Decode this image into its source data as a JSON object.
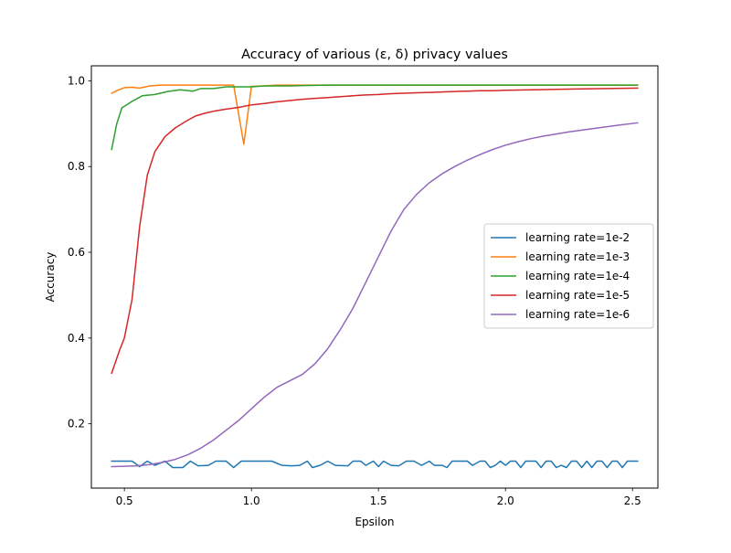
{
  "chart_data": {
    "type": "line",
    "title": "Accuracy of various (ε, δ) privacy values",
    "xlabel": "Epsilon",
    "ylabel": "Accuracy",
    "xlim": [
      0.37,
      2.6
    ],
    "ylim": [
      0.05,
      1.035
    ],
    "xticks": [
      0.5,
      1.0,
      1.5,
      2.0,
      2.5
    ],
    "xtick_labels": [
      "0.5",
      "1.0",
      "1.5",
      "2.0",
      "2.5"
    ],
    "yticks": [
      0.2,
      0.4,
      0.6,
      0.8,
      1.0
    ],
    "ytick_labels": [
      "0.2",
      "0.4",
      "0.6",
      "0.8",
      "1.0"
    ],
    "grid": false,
    "legend_position": "center-right",
    "series": [
      {
        "name": "learning rate=1e-2",
        "color": "#1f77b4",
        "points": [
          [
            0.45,
            0.113
          ],
          [
            0.5,
            0.113
          ],
          [
            0.53,
            0.113
          ],
          [
            0.56,
            0.1
          ],
          [
            0.59,
            0.113
          ],
          [
            0.62,
            0.103
          ],
          [
            0.66,
            0.113
          ],
          [
            0.69,
            0.098
          ],
          [
            0.73,
            0.098
          ],
          [
            0.76,
            0.113
          ],
          [
            0.79,
            0.102
          ],
          [
            0.83,
            0.103
          ],
          [
            0.86,
            0.113
          ],
          [
            0.9,
            0.113
          ],
          [
            0.93,
            0.098
          ],
          [
            0.96,
            0.113
          ],
          [
            1.0,
            0.113
          ],
          [
            1.05,
            0.113
          ],
          [
            1.08,
            0.113
          ],
          [
            1.12,
            0.103
          ],
          [
            1.16,
            0.102
          ],
          [
            1.19,
            0.103
          ],
          [
            1.22,
            0.113
          ],
          [
            1.24,
            0.098
          ],
          [
            1.27,
            0.103
          ],
          [
            1.3,
            0.113
          ],
          [
            1.33,
            0.103
          ],
          [
            1.38,
            0.102
          ],
          [
            1.4,
            0.113
          ],
          [
            1.43,
            0.113
          ],
          [
            1.45,
            0.103
          ],
          [
            1.48,
            0.113
          ],
          [
            1.5,
            0.1
          ],
          [
            1.52,
            0.113
          ],
          [
            1.55,
            0.103
          ],
          [
            1.58,
            0.102
          ],
          [
            1.61,
            0.113
          ],
          [
            1.64,
            0.113
          ],
          [
            1.67,
            0.103
          ],
          [
            1.7,
            0.113
          ],
          [
            1.72,
            0.103
          ],
          [
            1.75,
            0.103
          ],
          [
            1.77,
            0.098
          ],
          [
            1.79,
            0.113
          ],
          [
            1.82,
            0.113
          ],
          [
            1.85,
            0.113
          ],
          [
            1.87,
            0.103
          ],
          [
            1.9,
            0.113
          ],
          [
            1.92,
            0.113
          ],
          [
            1.94,
            0.098
          ],
          [
            1.96,
            0.103
          ],
          [
            1.98,
            0.113
          ],
          [
            2.0,
            0.103
          ],
          [
            2.02,
            0.113
          ],
          [
            2.04,
            0.113
          ],
          [
            2.06,
            0.098
          ],
          [
            2.08,
            0.113
          ],
          [
            2.12,
            0.113
          ],
          [
            2.14,
            0.098
          ],
          [
            2.16,
            0.113
          ],
          [
            2.18,
            0.113
          ],
          [
            2.2,
            0.098
          ],
          [
            2.22,
            0.103
          ],
          [
            2.24,
            0.098
          ],
          [
            2.26,
            0.113
          ],
          [
            2.28,
            0.113
          ],
          [
            2.3,
            0.098
          ],
          [
            2.32,
            0.113
          ],
          [
            2.34,
            0.098
          ],
          [
            2.36,
            0.113
          ],
          [
            2.38,
            0.113
          ],
          [
            2.4,
            0.098
          ],
          [
            2.42,
            0.113
          ],
          [
            2.44,
            0.113
          ],
          [
            2.46,
            0.098
          ],
          [
            2.48,
            0.113
          ],
          [
            2.52,
            0.113
          ]
        ]
      },
      {
        "name": "learning rate=1e-3",
        "color": "#ff7f0e",
        "points": [
          [
            0.45,
            0.971
          ],
          [
            0.47,
            0.977
          ],
          [
            0.5,
            0.984
          ],
          [
            0.53,
            0.985
          ],
          [
            0.56,
            0.983
          ],
          [
            0.6,
            0.988
          ],
          [
            0.65,
            0.99
          ],
          [
            0.7,
            0.99
          ],
          [
            0.75,
            0.99
          ],
          [
            0.8,
            0.99
          ],
          [
            0.85,
            0.99
          ],
          [
            0.9,
            0.99
          ],
          [
            0.93,
            0.99
          ],
          [
            0.97,
            0.852
          ],
          [
            1.0,
            0.987
          ],
          [
            1.05,
            0.988
          ],
          [
            1.1,
            0.99
          ],
          [
            1.2,
            0.99
          ],
          [
            1.3,
            0.99
          ],
          [
            1.4,
            0.99
          ],
          [
            1.5,
            0.99
          ],
          [
            1.6,
            0.99
          ],
          [
            1.7,
            0.99
          ],
          [
            1.8,
            0.99
          ],
          [
            1.9,
            0.99
          ],
          [
            2.0,
            0.99
          ],
          [
            2.1,
            0.99
          ],
          [
            2.2,
            0.99
          ],
          [
            2.3,
            0.99
          ],
          [
            2.4,
            0.99
          ],
          [
            2.52,
            0.99
          ]
        ]
      },
      {
        "name": "learning rate=1e-4",
        "color": "#2ca02c",
        "points": [
          [
            0.45,
            0.84
          ],
          [
            0.47,
            0.9
          ],
          [
            0.49,
            0.937
          ],
          [
            0.53,
            0.952
          ],
          [
            0.57,
            0.965
          ],
          [
            0.62,
            0.968
          ],
          [
            0.67,
            0.975
          ],
          [
            0.72,
            0.979
          ],
          [
            0.77,
            0.976
          ],
          [
            0.8,
            0.982
          ],
          [
            0.85,
            0.982
          ],
          [
            0.9,
            0.986
          ],
          [
            0.95,
            0.986
          ],
          [
            1.0,
            0.986
          ],
          [
            1.05,
            0.988
          ],
          [
            1.1,
            0.988
          ],
          [
            1.15,
            0.988
          ],
          [
            1.2,
            0.989
          ],
          [
            1.3,
            0.99
          ],
          [
            1.4,
            0.99
          ],
          [
            1.5,
            0.99
          ],
          [
            1.6,
            0.99
          ],
          [
            1.7,
            0.99
          ],
          [
            1.8,
            0.99
          ],
          [
            1.9,
            0.99
          ],
          [
            2.0,
            0.99
          ],
          [
            2.1,
            0.99
          ],
          [
            2.2,
            0.99
          ],
          [
            2.3,
            0.99
          ],
          [
            2.4,
            0.99
          ],
          [
            2.52,
            0.99
          ]
        ]
      },
      {
        "name": "learning rate=1e-5",
        "color": "#d62728",
        "points": [
          [
            0.45,
            0.318
          ],
          [
            0.48,
            0.37
          ],
          [
            0.5,
            0.4
          ],
          [
            0.53,
            0.49
          ],
          [
            0.56,
            0.66
          ],
          [
            0.59,
            0.78
          ],
          [
            0.62,
            0.835
          ],
          [
            0.66,
            0.87
          ],
          [
            0.7,
            0.89
          ],
          [
            0.74,
            0.905
          ],
          [
            0.78,
            0.918
          ],
          [
            0.82,
            0.925
          ],
          [
            0.86,
            0.93
          ],
          [
            0.9,
            0.934
          ],
          [
            0.95,
            0.938
          ],
          [
            1.0,
            0.944
          ],
          [
            1.05,
            0.947
          ],
          [
            1.1,
            0.951
          ],
          [
            1.15,
            0.954
          ],
          [
            1.2,
            0.957
          ],
          [
            1.25,
            0.959
          ],
          [
            1.3,
            0.961
          ],
          [
            1.35,
            0.963
          ],
          [
            1.4,
            0.965
          ],
          [
            1.45,
            0.967
          ],
          [
            1.5,
            0.968
          ],
          [
            1.55,
            0.97
          ],
          [
            1.6,
            0.971
          ],
          [
            1.65,
            0.972
          ],
          [
            1.7,
            0.973
          ],
          [
            1.75,
            0.974
          ],
          [
            1.8,
            0.975
          ],
          [
            1.85,
            0.976
          ],
          [
            1.9,
            0.977
          ],
          [
            1.95,
            0.977
          ],
          [
            2.0,
            0.978
          ],
          [
            2.1,
            0.979
          ],
          [
            2.2,
            0.98
          ],
          [
            2.3,
            0.981
          ],
          [
            2.4,
            0.982
          ],
          [
            2.52,
            0.983
          ]
        ]
      },
      {
        "name": "learning rate=1e-6",
        "color": "#9467bd",
        "points": [
          [
            0.45,
            0.1
          ],
          [
            0.5,
            0.101
          ],
          [
            0.55,
            0.102
          ],
          [
            0.6,
            0.105
          ],
          [
            0.65,
            0.11
          ],
          [
            0.7,
            0.117
          ],
          [
            0.75,
            0.128
          ],
          [
            0.8,
            0.143
          ],
          [
            0.85,
            0.162
          ],
          [
            0.9,
            0.185
          ],
          [
            0.95,
            0.208
          ],
          [
            1.0,
            0.235
          ],
          [
            1.05,
            0.262
          ],
          [
            1.1,
            0.285
          ],
          [
            1.15,
            0.3
          ],
          [
            1.2,
            0.315
          ],
          [
            1.25,
            0.34
          ],
          [
            1.3,
            0.375
          ],
          [
            1.35,
            0.42
          ],
          [
            1.4,
            0.47
          ],
          [
            1.45,
            0.53
          ],
          [
            1.5,
            0.59
          ],
          [
            1.55,
            0.65
          ],
          [
            1.6,
            0.7
          ],
          [
            1.65,
            0.735
          ],
          [
            1.7,
            0.762
          ],
          [
            1.75,
            0.783
          ],
          [
            1.8,
            0.8
          ],
          [
            1.85,
            0.815
          ],
          [
            1.9,
            0.828
          ],
          [
            1.95,
            0.84
          ],
          [
            2.0,
            0.85
          ],
          [
            2.05,
            0.858
          ],
          [
            2.1,
            0.865
          ],
          [
            2.15,
            0.871
          ],
          [
            2.2,
            0.876
          ],
          [
            2.25,
            0.881
          ],
          [
            2.3,
            0.885
          ],
          [
            2.35,
            0.889
          ],
          [
            2.4,
            0.893
          ],
          [
            2.45,
            0.897
          ],
          [
            2.52,
            0.902
          ]
        ]
      }
    ]
  }
}
